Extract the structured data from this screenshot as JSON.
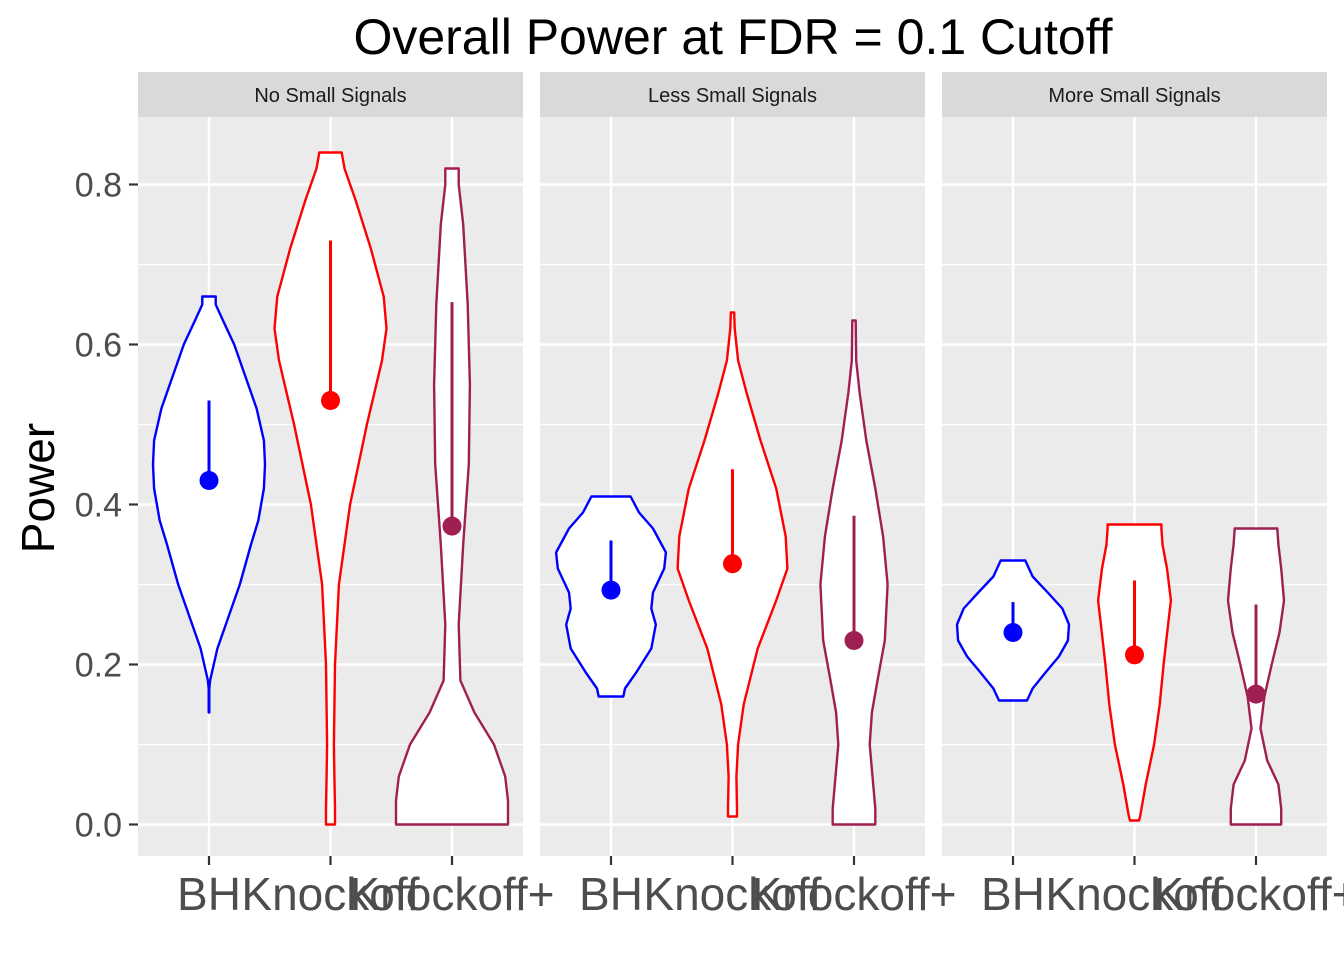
{
  "chart_data": {
    "type": "violin",
    "title": "Overall Power at FDR = 0.1 Cutoff",
    "xlabel": "",
    "ylabel": "Power",
    "ylim": [
      -0.04,
      0.88
    ],
    "yticks": [
      "0.0",
      "0.2",
      "0.4",
      "0.6",
      "0.8"
    ],
    "ytick_values": [
      0,
      0.2,
      0.4,
      0.6,
      0.8
    ],
    "grid": true,
    "legend": "none",
    "categories": [
      "BH",
      "Knockoff",
      "Knockoff+"
    ],
    "colors": {
      "BH": "#0000ff",
      "Knockoff": "#ff0000",
      "Knockoff+": "#a01f52"
    },
    "panels": [
      {
        "name": "No Small Signals",
        "groups": [
          {
            "method": "BH",
            "min": 0.14,
            "max": 0.66,
            "median": 0.43,
            "upper": 0.53,
            "density": [
              [
                0.14,
                0.005
              ],
              [
                0.17,
                0.005
              ],
              [
                0.18,
                0.02
              ],
              [
                0.22,
                0.15
              ],
              [
                0.26,
                0.35
              ],
              [
                0.3,
                0.55
              ],
              [
                0.35,
                0.75
              ],
              [
                0.38,
                0.88
              ],
              [
                0.42,
                0.98
              ],
              [
                0.45,
                1.0
              ],
              [
                0.48,
                0.98
              ],
              [
                0.52,
                0.85
              ],
              [
                0.56,
                0.65
              ],
              [
                0.6,
                0.45
              ],
              [
                0.63,
                0.25
              ],
              [
                0.65,
                0.12
              ],
              [
                0.66,
                0.12
              ]
            ]
          },
          {
            "method": "Knockoff",
            "min": 0.0,
            "max": 0.84,
            "median": 0.53,
            "upper": 0.73,
            "density": [
              [
                0.0,
                0.08
              ],
              [
                0.02,
                0.08
              ],
              [
                0.06,
                0.07
              ],
              [
                0.1,
                0.06
              ],
              [
                0.2,
                0.08
              ],
              [
                0.3,
                0.15
              ],
              [
                0.4,
                0.35
              ],
              [
                0.5,
                0.65
              ],
              [
                0.58,
                0.92
              ],
              [
                0.62,
                1.0
              ],
              [
                0.66,
                0.95
              ],
              [
                0.72,
                0.72
              ],
              [
                0.78,
                0.45
              ],
              [
                0.82,
                0.25
              ],
              [
                0.84,
                0.2
              ]
            ]
          },
          {
            "method": "Knockoff+",
            "min": 0.0,
            "max": 0.82,
            "median": 0.373,
            "upper": 0.653,
            "density": [
              [
                0.0,
                1.0
              ],
              [
                0.03,
                1.0
              ],
              [
                0.06,
                0.95
              ],
              [
                0.1,
                0.75
              ],
              [
                0.14,
                0.4
              ],
              [
                0.18,
                0.15
              ],
              [
                0.25,
                0.12
              ],
              [
                0.35,
                0.2
              ],
              [
                0.45,
                0.3
              ],
              [
                0.55,
                0.32
              ],
              [
                0.65,
                0.28
              ],
              [
                0.75,
                0.2
              ],
              [
                0.8,
                0.12
              ],
              [
                0.82,
                0.12
              ]
            ]
          }
        ]
      },
      {
        "name": "Less Small Signals",
        "groups": [
          {
            "method": "BH",
            "min": 0.16,
            "max": 0.41,
            "median": 0.293,
            "upper": 0.355,
            "density": [
              [
                0.16,
                0.22
              ],
              [
                0.17,
                0.25
              ],
              [
                0.19,
                0.45
              ],
              [
                0.22,
                0.72
              ],
              [
                0.25,
                0.8
              ],
              [
                0.27,
                0.72
              ],
              [
                0.29,
                0.75
              ],
              [
                0.32,
                0.95
              ],
              [
                0.34,
                0.98
              ],
              [
                0.37,
                0.75
              ],
              [
                0.39,
                0.5
              ],
              [
                0.41,
                0.35
              ]
            ]
          },
          {
            "method": "Knockoff",
            "min": 0.01,
            "max": 0.64,
            "median": 0.326,
            "upper": 0.444,
            "density": [
              [
                0.01,
                0.08
              ],
              [
                0.02,
                0.08
              ],
              [
                0.06,
                0.07
              ],
              [
                0.1,
                0.1
              ],
              [
                0.15,
                0.2
              ],
              [
                0.22,
                0.45
              ],
              [
                0.28,
                0.78
              ],
              [
                0.32,
                0.98
              ],
              [
                0.36,
                0.95
              ],
              [
                0.42,
                0.78
              ],
              [
                0.48,
                0.5
              ],
              [
                0.54,
                0.25
              ],
              [
                0.58,
                0.1
              ],
              [
                0.62,
                0.04
              ],
              [
                0.64,
                0.03
              ]
            ]
          },
          {
            "method": "Knockoff+",
            "min": 0.0,
            "max": 0.63,
            "median": 0.23,
            "upper": 0.386,
            "density": [
              [
                0.0,
                0.38
              ],
              [
                0.02,
                0.38
              ],
              [
                0.06,
                0.33
              ],
              [
                0.1,
                0.28
              ],
              [
                0.14,
                0.32
              ],
              [
                0.18,
                0.42
              ],
              [
                0.23,
                0.55
              ],
              [
                0.3,
                0.6
              ],
              [
                0.36,
                0.52
              ],
              [
                0.42,
                0.38
              ],
              [
                0.48,
                0.22
              ],
              [
                0.54,
                0.1
              ],
              [
                0.58,
                0.04
              ],
              [
                0.63,
                0.03
              ]
            ]
          }
        ]
      },
      {
        "name": "More Small Signals",
        "groups": [
          {
            "method": "BH",
            "min": 0.155,
            "max": 0.33,
            "median": 0.24,
            "upper": 0.278,
            "density": [
              [
                0.155,
                0.25
              ],
              [
                0.17,
                0.35
              ],
              [
                0.19,
                0.58
              ],
              [
                0.21,
                0.82
              ],
              [
                0.23,
                0.98
              ],
              [
                0.25,
                1.0
              ],
              [
                0.27,
                0.88
              ],
              [
                0.29,
                0.62
              ],
              [
                0.31,
                0.35
              ],
              [
                0.33,
                0.22
              ]
            ]
          },
          {
            "method": "Knockoff",
            "min": 0.005,
            "max": 0.375,
            "median": 0.212,
            "upper": 0.305,
            "density": [
              [
                0.005,
                0.08
              ],
              [
                0.01,
                0.1
              ],
              [
                0.05,
                0.2
              ],
              [
                0.1,
                0.35
              ],
              [
                0.15,
                0.45
              ],
              [
                0.2,
                0.52
              ],
              [
                0.25,
                0.6
              ],
              [
                0.28,
                0.65
              ],
              [
                0.32,
                0.58
              ],
              [
                0.35,
                0.5
              ],
              [
                0.37,
                0.48
              ],
              [
                0.375,
                0.48
              ]
            ]
          },
          {
            "method": "Knockoff+",
            "min": 0.0,
            "max": 0.37,
            "median": 0.163,
            "upper": 0.275,
            "density": [
              [
                0.0,
                0.45
              ],
              [
                0.02,
                0.45
              ],
              [
                0.05,
                0.4
              ],
              [
                0.08,
                0.2
              ],
              [
                0.12,
                0.08
              ],
              [
                0.16,
                0.15
              ],
              [
                0.2,
                0.28
              ],
              [
                0.24,
                0.42
              ],
              [
                0.28,
                0.5
              ],
              [
                0.32,
                0.45
              ],
              [
                0.35,
                0.4
              ],
              [
                0.37,
                0.38
              ]
            ]
          }
        ]
      }
    ]
  }
}
